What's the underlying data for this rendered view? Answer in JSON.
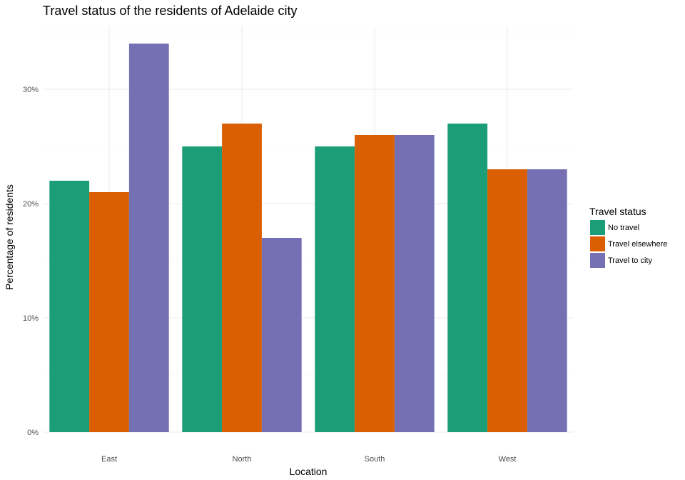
{
  "chart_data": {
    "type": "bar",
    "title": "Travel status of the residents of Adelaide city",
    "xlabel": "Location",
    "ylabel": "Percentage of residents",
    "categories": [
      "East",
      "North",
      "South",
      "West"
    ],
    "series": [
      {
        "name": "No travel",
        "values": [
          22,
          25,
          25,
          27
        ],
        "color": "#1B9E77"
      },
      {
        "name": "Travel elsewhere",
        "values": [
          21,
          27,
          26,
          23
        ],
        "color": "#D95F02"
      },
      {
        "name": "Travel to city",
        "values": [
          34,
          17,
          26,
          23
        ],
        "color": "#7570B3"
      }
    ],
    "ylim": [
      0,
      35.5
    ],
    "y_major_ticks": [
      0,
      10,
      20,
      30
    ],
    "y_tick_labels": [
      "0%",
      "10%",
      "20%",
      "30%"
    ],
    "y_minor_ticks": [
      5,
      15,
      25,
      35
    ],
    "grid": true,
    "legend": {
      "title": "Travel status",
      "position": "right"
    }
  }
}
